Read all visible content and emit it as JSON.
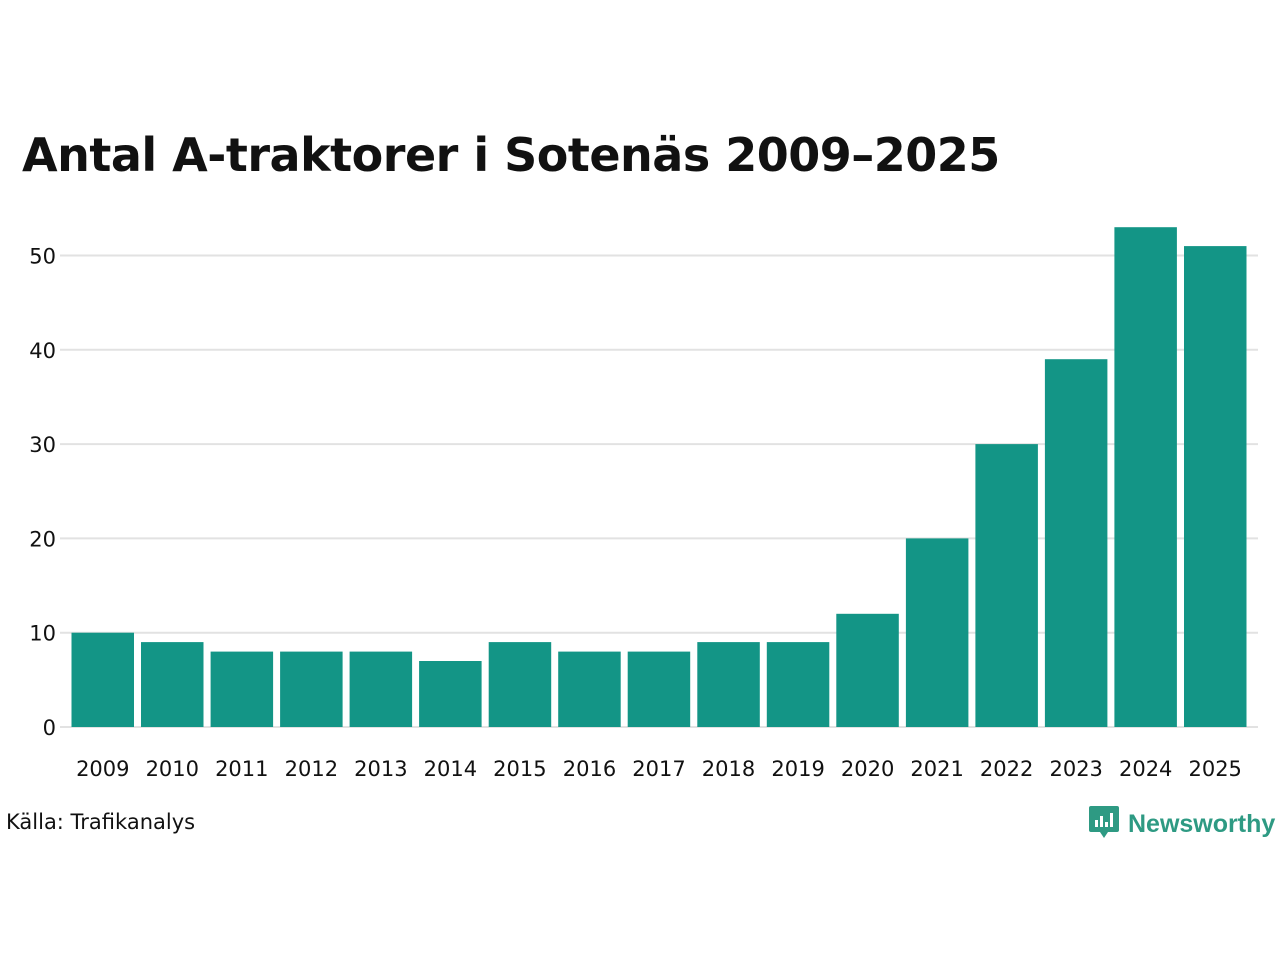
{
  "chart_data": {
    "type": "bar",
    "title": "Antal A-traktorer i Sotenäs 2009–2025",
    "xlabel": "",
    "ylabel": "",
    "categories": [
      "2009",
      "2010",
      "2011",
      "2012",
      "2013",
      "2014",
      "2015",
      "2016",
      "2017",
      "2018",
      "2019",
      "2020",
      "2021",
      "2022",
      "2023",
      "2024",
      "2025"
    ],
    "values": [
      10,
      9,
      8,
      8,
      8,
      7,
      9,
      8,
      8,
      9,
      9,
      12,
      20,
      30,
      39,
      53,
      51
    ],
    "ylim": [
      0,
      55
    ],
    "yticks": [
      0,
      10,
      20,
      30,
      40,
      50
    ],
    "grid": true,
    "legend": "none",
    "bar_color": "#139586",
    "grid_color": "#e2e2e2"
  },
  "footer": {
    "source": "Källa: Trafikanalys",
    "brand": "Newsworthy",
    "brand_color": "#2e9a83",
    "logo_icon": "newsworthy-logo-icon"
  }
}
